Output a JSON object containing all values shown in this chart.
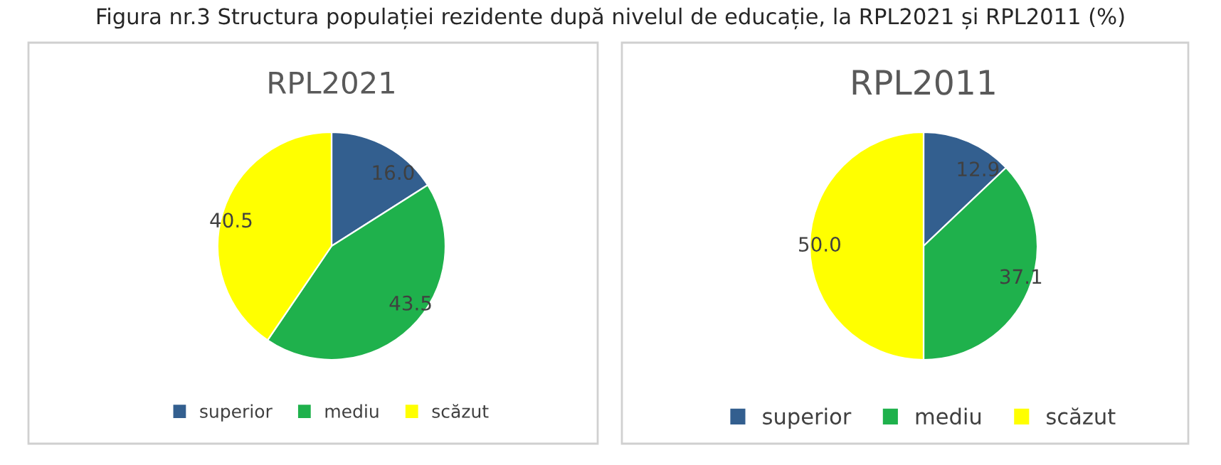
{
  "chart_data": [
    {
      "type": "pie",
      "title": "RPL2021",
      "annotations": [
        "Figura nr.3 Structura populației rezidente după nivelul de educație, la RPL2021 și RPL2011 (%)"
      ],
      "categories": [
        "superior",
        "mediu",
        "scăzut"
      ],
      "values": [
        16.0,
        43.5,
        40.5
      ],
      "value_labels": [
        "16.0",
        "43.5",
        "40.5"
      ],
      "colors": [
        "#335f8f",
        "#1fb14c",
        "#ffff00"
      ],
      "legend": "bottom"
    },
    {
      "type": "pie",
      "title": "RPL2011",
      "categories": [
        "superior",
        "mediu",
        "scăzut"
      ],
      "values": [
        12.9,
        37.1,
        50.0
      ],
      "value_labels": [
        "12.9",
        "37.1",
        "50.0"
      ],
      "colors": [
        "#335f8f",
        "#1fb14c",
        "#ffff00"
      ],
      "legend": "bottom"
    }
  ]
}
